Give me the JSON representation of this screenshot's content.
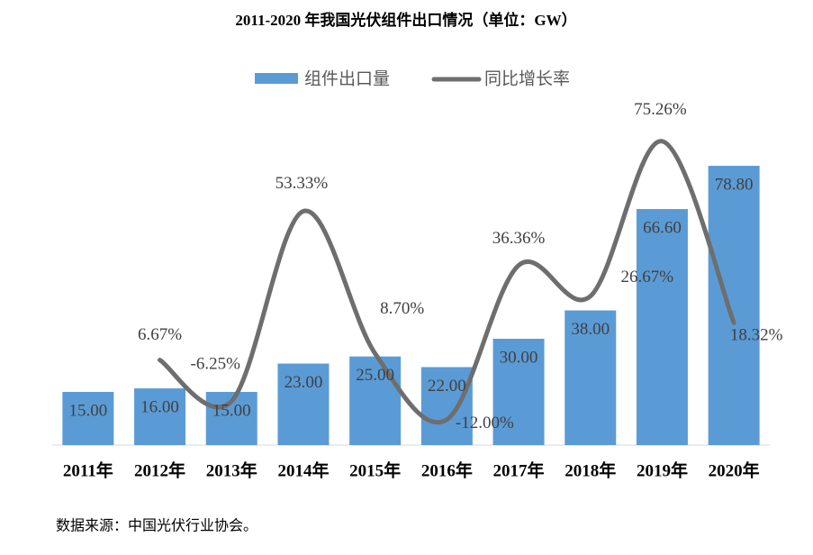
{
  "chart_data": {
    "type": "bar-line",
    "title": "2011-2020 年我国光伏组件出口情况（单位：GW）",
    "categories": [
      "2011年",
      "2012年",
      "2013年",
      "2014年",
      "2015年",
      "2016年",
      "2017年",
      "2018年",
      "2019年",
      "2020年"
    ],
    "series": [
      {
        "name": "组件出口量",
        "type": "bar",
        "color": "#5b9bd5",
        "values": [
          15,
          16,
          15,
          23,
          25,
          22,
          30,
          38,
          66.6,
          78.8
        ],
        "value_labels": [
          "15.00",
          "16.00",
          "15.00",
          "23.00",
          "25.00",
          "22.00",
          "30.00",
          "38.00",
          "66.60",
          "78.80"
        ]
      },
      {
        "name": "同比增长率",
        "type": "line",
        "axis": "y2",
        "color": "#6e6e6e",
        "values": [
          null,
          6.67,
          -6.25,
          53.33,
          8.7,
          -12.0,
          36.36,
          26.67,
          75.26,
          18.32
        ],
        "value_labels": [
          null,
          "6.67%",
          "-6.25%",
          "53.33%",
          "8.70%",
          "-12.00%",
          "36.36%",
          "26.67%",
          "75.26%",
          "18.32%"
        ]
      }
    ],
    "ylim": [
      0,
      90
    ],
    "y2lim": [
      -20,
      80
    ],
    "source": "数据来源：中国光伏行业协会。"
  }
}
